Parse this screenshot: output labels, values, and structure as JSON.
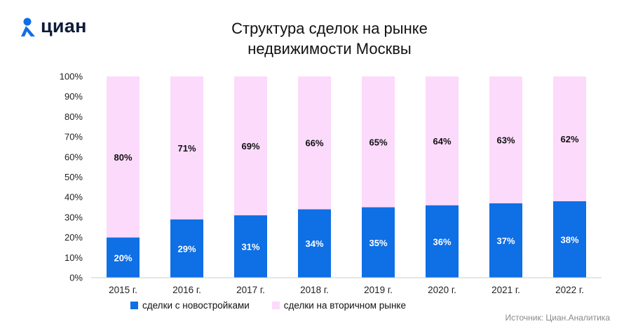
{
  "logo": {
    "text": "циан",
    "icon": "location-pin-icon"
  },
  "title_line1": "Структура сделок на рынке",
  "title_line2": "недвижимости Москвы",
  "source": "Источник: Циан.Аналитика",
  "colors": {
    "new": "#0f6fe5",
    "secondary": "#fcdafb",
    "brand": "#0f6fe5",
    "axis": "#cccccc"
  },
  "chart_data": {
    "type": "bar",
    "stacked": true,
    "categories": [
      "2015 г.",
      "2016 г.",
      "2017 г.",
      "2018 г.",
      "2019 г.",
      "2020 г.",
      "2021 г.",
      "2022 г."
    ],
    "series": [
      {
        "name": "сделки с новостройками",
        "values": [
          20,
          29,
          31,
          34,
          35,
          36,
          37,
          38
        ],
        "labels": [
          "20%",
          "29%",
          "31%",
          "34%",
          "35%",
          "36%",
          "37%",
          "38%"
        ]
      },
      {
        "name": "сделки на вторичном рынке",
        "values": [
          80,
          71,
          69,
          66,
          65,
          64,
          63,
          62
        ],
        "labels": [
          "80%",
          "71%",
          "69%",
          "66%",
          "65%",
          "64%",
          "63%",
          "62%"
        ]
      }
    ],
    "yticks": [
      "0%",
      "10%",
      "20%",
      "30%",
      "40%",
      "50%",
      "60%",
      "70%",
      "80%",
      "90%",
      "100%"
    ],
    "ylim": [
      0,
      100
    ],
    "legend_position": "bottom",
    "grid": false
  }
}
